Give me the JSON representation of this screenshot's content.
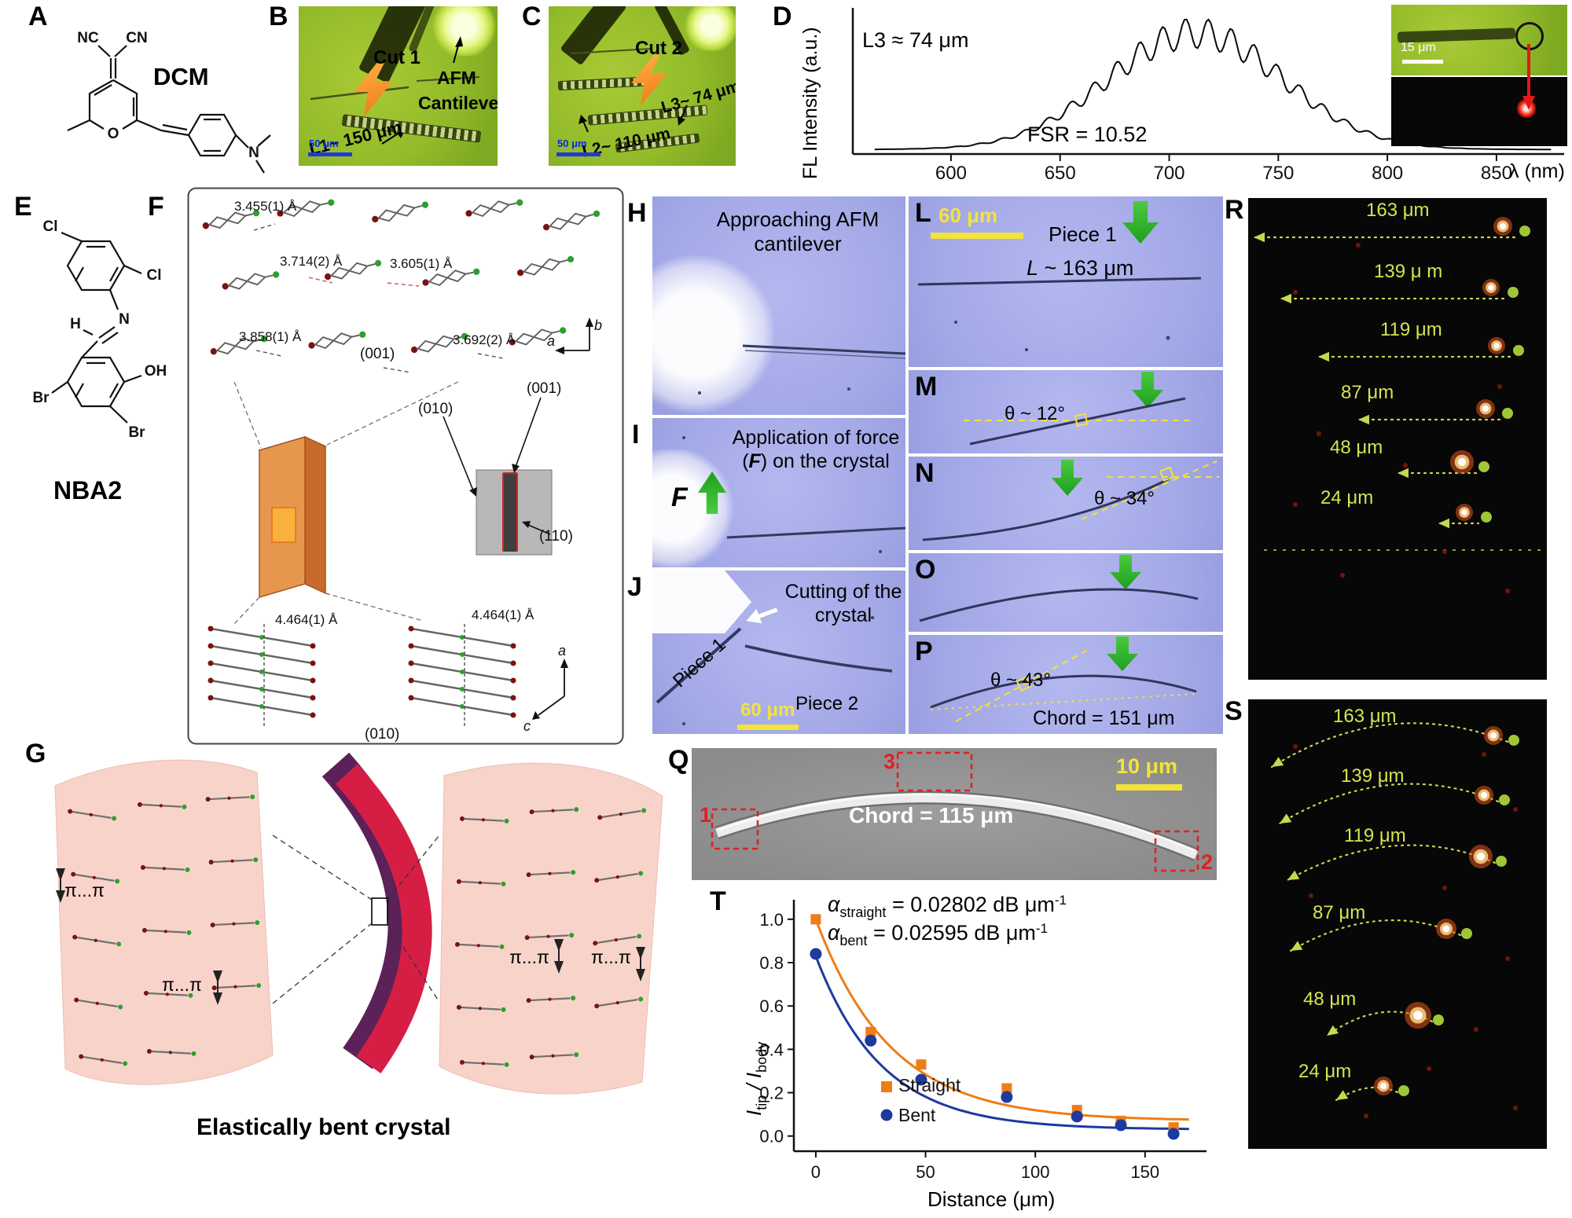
{
  "panelA": {
    "label": "A",
    "nc": "NC",
    "cn": "CN",
    "o": "O",
    "n": "N",
    "name": "DCM"
  },
  "panelB": {
    "label": "B",
    "cut": "Cut 1",
    "afm_line1": "AFM",
    "afm_line2": "Cantilever",
    "length": "L1~ 150 μm",
    "scalebar": "50 μm"
  },
  "panelC": {
    "label": "C",
    "cut": "Cut 2",
    "l3": "L3~ 74 μm",
    "l2": "L2~ 110 μm",
    "scalebar": "50 μm"
  },
  "panelD": {
    "label": "D",
    "ylabel": "FL Intensity (a.u.)",
    "xlabel": "λ (nm)",
    "l3": "L3 ≈ 74 μm",
    "fsr": "FSR = 10.52",
    "inset_scalebar": "15 μm"
  },
  "panelE": {
    "label": "E",
    "cl1": "Cl",
    "cl2": "Cl",
    "n": "N",
    "h": "H",
    "oh": "OH",
    "br1": "Br",
    "br2": "Br",
    "name": "NBA2"
  },
  "panelF": {
    "label": "F",
    "d1": "3.455(1) Å",
    "d2": "3.714(2) Å",
    "d3": "3.605(1) Å",
    "d4": "3.858(1) Å",
    "plane001_top": "(001)",
    "d5": "3.692(2) Å",
    "axis_b": "b",
    "axis_a_top": "a",
    "plane001_cryst": "(001)",
    "plane010_cryst": "(010)",
    "plane110_cryst": "(110)",
    "d6": "4.464(1) Å",
    "d7": "4.464(1) Å",
    "plane010_bottom": "(010)",
    "axis_a_bottom": "a",
    "axis_c": "c"
  },
  "panelG": {
    "label": "G",
    "pi": [
      "π...π",
      "π...π",
      "π...π",
      "π...π"
    ],
    "caption": "Elastically bent crystal"
  },
  "panelH": {
    "label": "H",
    "caption": "Approaching AFM cantilever"
  },
  "panelI": {
    "label": "I",
    "cap_pre": "Application of force (",
    "f_inline": "F",
    "cap_post": ") on the crystal",
    "f": "F"
  },
  "panelJ": {
    "label": "J",
    "caption": "Cutting of the crystal",
    "piece1": "Piece 1",
    "piece2": "Piece 2",
    "scalebar": "60 μm"
  },
  "panelL": {
    "label": "L",
    "scalebar": "60 μm",
    "piece": "Piece 1",
    "len_sym": "L",
    "len_rest": " ~ 163 μm"
  },
  "panelM": {
    "label": "M",
    "angle": "θ ~ 12°"
  },
  "panelN": {
    "label": "N",
    "angle": "θ ~ 34°"
  },
  "panelO": {
    "label": "O"
  },
  "panelP": {
    "label": "P",
    "angle": "θ ~ 43°",
    "chord": "Chord = 151 μm"
  },
  "panelQ": {
    "label": "Q",
    "chord": "Chord = 115 μm",
    "scalebar": "10 μm",
    "box1": "1",
    "box2": "2",
    "box3": "3"
  },
  "panelR": {
    "label": "R",
    "distances": [
      "163 μm",
      "139 μ m",
      "119 μm",
      "87 μm",
      "48 μm",
      "24 μm"
    ]
  },
  "panelS": {
    "label": "S",
    "distances": [
      "163 μm",
      "139 μm",
      "119 μm",
      "87 μm",
      "48 μm",
      "24 μm"
    ]
  },
  "panelT": {
    "label": "T",
    "alpha": "α",
    "sub_straight": "straight",
    "sub_bent": "bent",
    "val_straight": " = 0.02802 dB μm",
    "val_bent": " = 0.02595 dB μm",
    "sup": "-1",
    "ylabel_i1": "I",
    "ylabel_sub1": "tip",
    "ylabel_mid": " / I",
    "ylabel_sub2": "body",
    "xlabel": "Distance (μm)"
  },
  "chart_data": [
    {
      "id": "emission-spectrum",
      "type": "line",
      "panel": "D",
      "xlabel": "λ (nm)",
      "ylabel": "FL Intensity (a.u.)",
      "xticks": [
        600,
        650,
        700,
        750,
        800,
        850
      ],
      "x_range_nm": [
        565,
        875
      ],
      "peak_center_nm": 712,
      "envelope_sigma_nm": 40,
      "mod_period_nm": 10.52,
      "mod_depth": 0.13,
      "annotations": [
        "L3 ≈ 74 μm",
        "FSR = 10.52"
      ]
    },
    {
      "id": "optical-loss",
      "type": "scatter",
      "panel": "T",
      "xlabel": "Distance (μm)",
      "ylabel": "Itip / Ibody",
      "xticks": [
        0,
        50,
        100,
        150
      ],
      "yticks": [
        0.0,
        0.2,
        0.4,
        0.6,
        0.8,
        1.0
      ],
      "xlim": [
        -10,
        178
      ],
      "ylim": [
        -0.07,
        1.09
      ],
      "series": [
        {
          "name": "Straight",
          "marker": "square",
          "color": "#ee7d18",
          "x": [
            0,
            25,
            48,
            87,
            119,
            139,
            163
          ],
          "y": [
            1.0,
            0.48,
            0.33,
            0.22,
            0.12,
            0.07,
            0.04
          ],
          "alpha_dB_per_um": 0.02802,
          "fit": {
            "A": 0.93,
            "tau": 34,
            "c": 0.07
          }
        },
        {
          "name": "Bent",
          "marker": "circle",
          "color": "#1d3a9e",
          "x": [
            0,
            25,
            48,
            87,
            119,
            139,
            163
          ],
          "y": [
            0.84,
            0.44,
            0.26,
            0.18,
            0.09,
            0.05,
            0.01
          ],
          "alpha_dB_per_um": 0.02595,
          "fit": {
            "A": 0.8,
            "tau": 30,
            "c": 0.03
          }
        }
      ]
    }
  ]
}
